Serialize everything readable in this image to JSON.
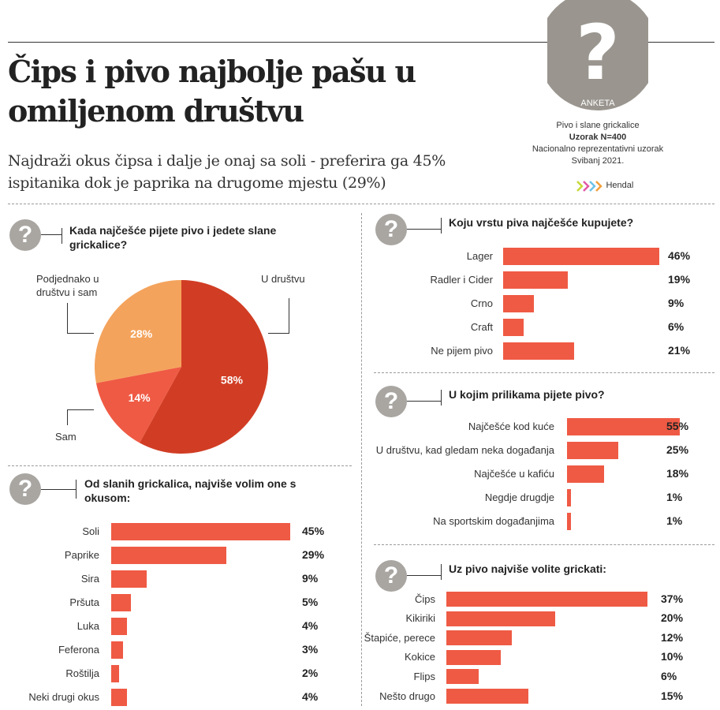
{
  "header": {
    "title": "Čips i pivo najbolje pašu u omiljenom društvu",
    "subtitle": "Najdraži okus čipsa i dalje je onaj sa soli - preferira ga 45% ispitanika dok je paprika na drugome mjestu (29%)"
  },
  "survey": {
    "badge_mark": "?",
    "badge_label": "ANKETA",
    "topic": "Pivo i slane grickalice",
    "sample": "Uzorak N=400",
    "design": "Nacionalno reprezentativni uzorak",
    "date": "Svibanj 2021.",
    "brand": "Hendal"
  },
  "colors": {
    "bar": "#ef5a44",
    "pie_primary": "#d13d24",
    "pie_secondary": "#ef5a44",
    "pie_tertiary": "#f4a35c",
    "icon": "#a9a6a2"
  },
  "icon_glyph": "?",
  "chart_data": [
    {
      "type": "pie",
      "title": "Kada najčešće pijete pivo i jedete slane grickalice?",
      "labels": [
        "U društvu",
        "Sam",
        "Podjednako u društvu i sam"
      ],
      "values": [
        58,
        14,
        28
      ],
      "value_labels": [
        "58%",
        "14%",
        "28%"
      ]
    },
    {
      "type": "bar",
      "title": "Koju vrstu piva najčešće kupujete?",
      "categories": [
        "Lager",
        "Radler i Cider",
        "Crno",
        "Craft",
        "Ne pijem pivo"
      ],
      "values": [
        46,
        19,
        9,
        6,
        21
      ],
      "value_labels": [
        "46%",
        "19%",
        "9%",
        "6%",
        "21%"
      ]
    },
    {
      "type": "bar",
      "title": "U kojim prilikama pijete pivo?",
      "categories": [
        "Najčešće kod kuće",
        "U društvu, kad gledam neka događanja",
        "Najčešće u kafiću",
        "Negdje drugdje",
        "Na sportskim događanjima"
      ],
      "values": [
        55,
        25,
        18,
        1,
        1
      ],
      "value_labels": [
        "55%",
        "25%",
        "18%",
        "1%",
        "1%"
      ]
    },
    {
      "type": "bar",
      "title": "Od slanih grickalica, najviše volim one s okusom:",
      "categories": [
        "Soli",
        "Paprike",
        "Sira",
        "Pršuta",
        "Luka",
        "Feferona",
        "Roštilja",
        "Neki drugi okus"
      ],
      "values": [
        45,
        29,
        9,
        5,
        4,
        3,
        2,
        4
      ],
      "value_labels": [
        "45%",
        "29%",
        "9%",
        "5%",
        "4%",
        "3%",
        "2%",
        "4%"
      ]
    },
    {
      "type": "bar",
      "title": "Uz pivo najviše volite grickati:",
      "categories": [
        "Čips",
        "Kikiriki",
        "Štapiće, perece",
        "Kokice",
        "Flips",
        "Nešto drugo"
      ],
      "values": [
        37,
        20,
        12,
        10,
        6,
        15
      ],
      "value_labels": [
        "37%",
        "20%",
        "12%",
        "10%",
        "6%",
        "15%"
      ]
    }
  ]
}
